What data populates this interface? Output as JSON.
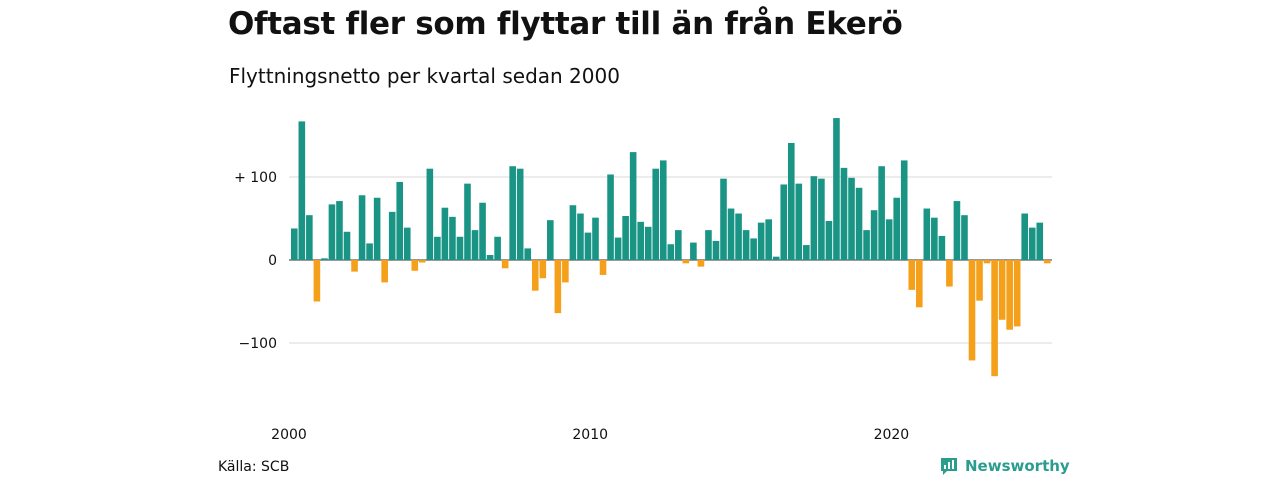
{
  "header": {
    "title": "Oftast fler som flyttar till än från Ekerö",
    "subtitle": "Flyttningsnetto per kvartal sedan 2000"
  },
  "footer": {
    "source": "Källa: SCB",
    "brand": "Newsworthy"
  },
  "colors": {
    "positive": "#1a9585",
    "negative": "#f5a01a",
    "grid": "#d9d9d9",
    "brand": "#2a9d8f"
  },
  "chart_data": {
    "type": "bar",
    "ylim": [
      -160,
      175
    ],
    "yticks": [
      {
        "value": 100,
        "label": "+ 100"
      },
      {
        "value": 0,
        "label": "0"
      },
      {
        "value": -100,
        "label": "−100"
      }
    ],
    "xticks": [
      {
        "index": 0,
        "label": "2000"
      },
      {
        "index": 40,
        "label": "2010"
      },
      {
        "index": 80,
        "label": "2020"
      }
    ],
    "grid": true,
    "start_quarter": "2000Q1",
    "values": [
      38,
      167,
      54,
      -50,
      2,
      67,
      71,
      34,
      -14,
      78,
      20,
      75,
      -27,
      58,
      94,
      39,
      -13,
      -3,
      110,
      28,
      63,
      52,
      28,
      92,
      36,
      69,
      6,
      28,
      -10,
      113,
      110,
      14,
      -37,
      -22,
      48,
      -64,
      -27,
      66,
      56,
      33,
      51,
      -18,
      103,
      27,
      53,
      130,
      46,
      40,
      110,
      120,
      19,
      36,
      -4,
      21,
      -8,
      36,
      23,
      98,
      62,
      56,
      36,
      26,
      45,
      49,
      4,
      91,
      141,
      92,
      18,
      101,
      98,
      47,
      171,
      111,
      99,
      87,
      36,
      60,
      113,
      49,
      75,
      120,
      -36,
      -57,
      62,
      51,
      29,
      -32,
      71,
      54,
      -121,
      -49,
      -4,
      -140,
      -72,
      -84,
      -80,
      56,
      39,
      45,
      -4
    ]
  }
}
